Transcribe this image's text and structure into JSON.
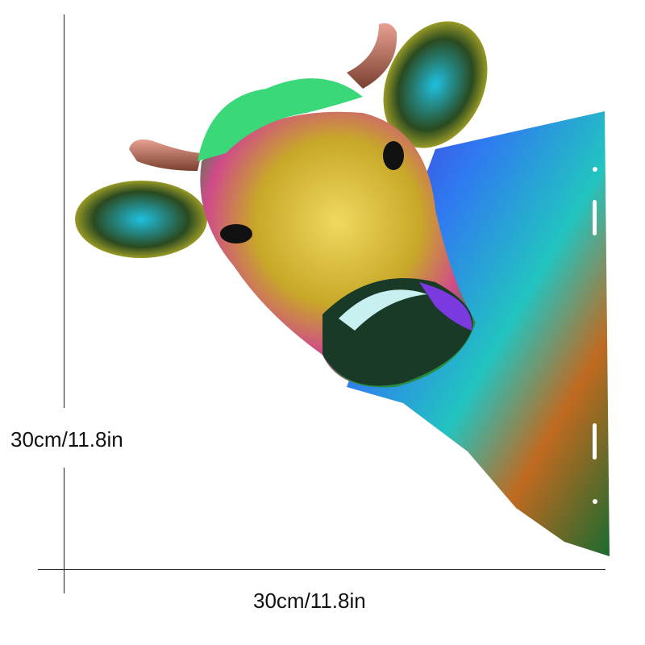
{
  "product": {
    "subject": "colorful cow head sign",
    "colors": {
      "purple": "#5a2ee0",
      "blue": "#2f7bf0",
      "green": "#2ccf6a",
      "yellow": "#e8d22a",
      "orange": "#e07a20",
      "teal": "#22c4c0",
      "horn": "#b86b5a"
    }
  },
  "dimensions": {
    "height_label": "30cm/11.8in",
    "width_label": "30cm/11.8in"
  }
}
